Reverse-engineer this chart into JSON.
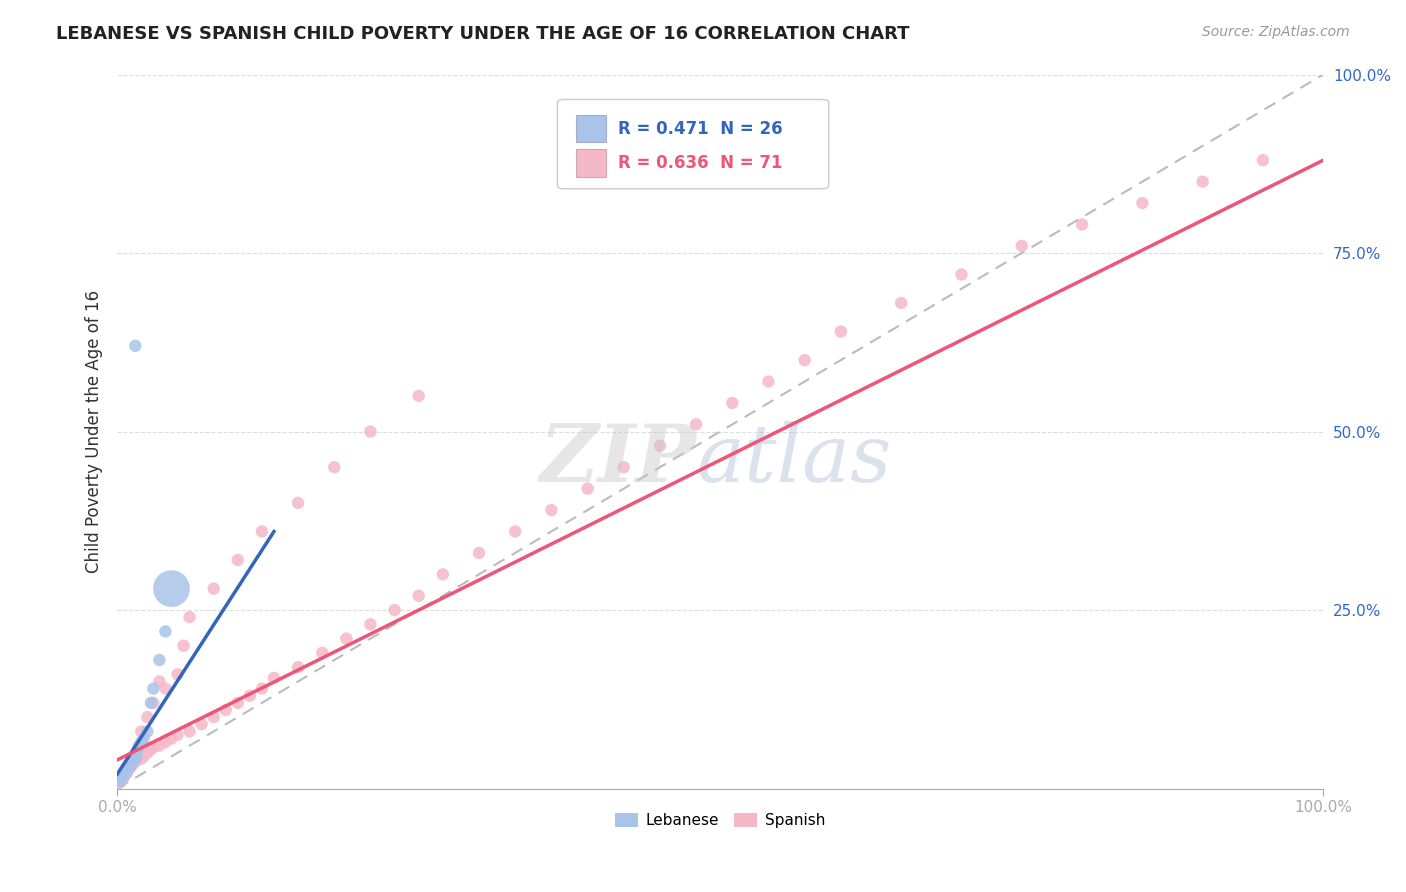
{
  "title": "LEBANESE VS SPANISH CHILD POVERTY UNDER THE AGE OF 16 CORRELATION CHART",
  "source": "Source: ZipAtlas.com",
  "ylabel": "Child Poverty Under the Age of 16",
  "xlim": [
    0,
    1
  ],
  "ylim": [
    0,
    1
  ],
  "lebanese_color": "#A8C4E8",
  "spanish_color": "#F5B8C8",
  "lebanese_line_color": "#3366BB",
  "spanish_line_color": "#EE5577",
  "background_color": "#FFFFFF",
  "grid_color": "#DDDDDD",
  "leb_r": 0.471,
  "leb_n": 26,
  "spa_r": 0.636,
  "spa_n": 71,
  "leb_x": [
    0.002,
    0.003,
    0.004,
    0.005,
    0.006,
    0.007,
    0.008,
    0.009,
    0.01,
    0.011,
    0.012,
    0.013,
    0.014,
    0.015,
    0.016,
    0.017,
    0.018,
    0.02,
    0.022,
    0.025,
    0.028,
    0.03,
    0.035,
    0.04,
    0.045,
    0.015
  ],
  "leb_y": [
    0.01,
    0.012,
    0.015,
    0.018,
    0.02,
    0.022,
    0.025,
    0.028,
    0.03,
    0.032,
    0.035,
    0.038,
    0.04,
    0.042,
    0.045,
    0.055,
    0.06,
    0.065,
    0.07,
    0.08,
    0.12,
    0.14,
    0.18,
    0.22,
    0.28,
    0.62
  ],
  "leb_sizes": [
    80,
    80,
    80,
    80,
    80,
    80,
    80,
    80,
    80,
    80,
    80,
    80,
    80,
    80,
    80,
    80,
    80,
    80,
    80,
    80,
    80,
    80,
    80,
    80,
    80,
    80
  ],
  "leb_big_idx": 24,
  "leb_big_size": 700,
  "spa_x": [
    0.002,
    0.003,
    0.004,
    0.005,
    0.006,
    0.007,
    0.008,
    0.009,
    0.01,
    0.011,
    0.012,
    0.013,
    0.015,
    0.017,
    0.02,
    0.022,
    0.025,
    0.028,
    0.03,
    0.035,
    0.04,
    0.045,
    0.05,
    0.06,
    0.07,
    0.08,
    0.09,
    0.1,
    0.11,
    0.12,
    0.13,
    0.15,
    0.17,
    0.19,
    0.21,
    0.23,
    0.25,
    0.27,
    0.3,
    0.33,
    0.36,
    0.39,
    0.42,
    0.45,
    0.48,
    0.51,
    0.54,
    0.57,
    0.6,
    0.65,
    0.7,
    0.75,
    0.8,
    0.85,
    0.9,
    0.95,
    0.02,
    0.025,
    0.03,
    0.035,
    0.04,
    0.05,
    0.055,
    0.06,
    0.08,
    0.1,
    0.12,
    0.15,
    0.18,
    0.21,
    0.25
  ],
  "spa_y": [
    0.008,
    0.01,
    0.012,
    0.015,
    0.018,
    0.02,
    0.022,
    0.025,
    0.028,
    0.03,
    0.032,
    0.035,
    0.038,
    0.04,
    0.042,
    0.045,
    0.05,
    0.055,
    0.058,
    0.06,
    0.065,
    0.07,
    0.075,
    0.08,
    0.09,
    0.1,
    0.11,
    0.12,
    0.13,
    0.14,
    0.155,
    0.17,
    0.19,
    0.21,
    0.23,
    0.25,
    0.27,
    0.3,
    0.33,
    0.36,
    0.39,
    0.42,
    0.45,
    0.48,
    0.51,
    0.54,
    0.57,
    0.6,
    0.64,
    0.68,
    0.72,
    0.76,
    0.79,
    0.82,
    0.85,
    0.88,
    0.08,
    0.1,
    0.12,
    0.15,
    0.14,
    0.16,
    0.2,
    0.24,
    0.28,
    0.32,
    0.36,
    0.4,
    0.45,
    0.5,
    0.55
  ],
  "leb_line_x0": 0.0,
  "leb_line_x1": 0.13,
  "leb_line_y0": 0.02,
  "leb_line_y1": 0.36,
  "spa_line_x0": 0.0,
  "spa_line_x1": 1.0,
  "spa_line_y0": 0.04,
  "spa_line_y1": 0.88
}
